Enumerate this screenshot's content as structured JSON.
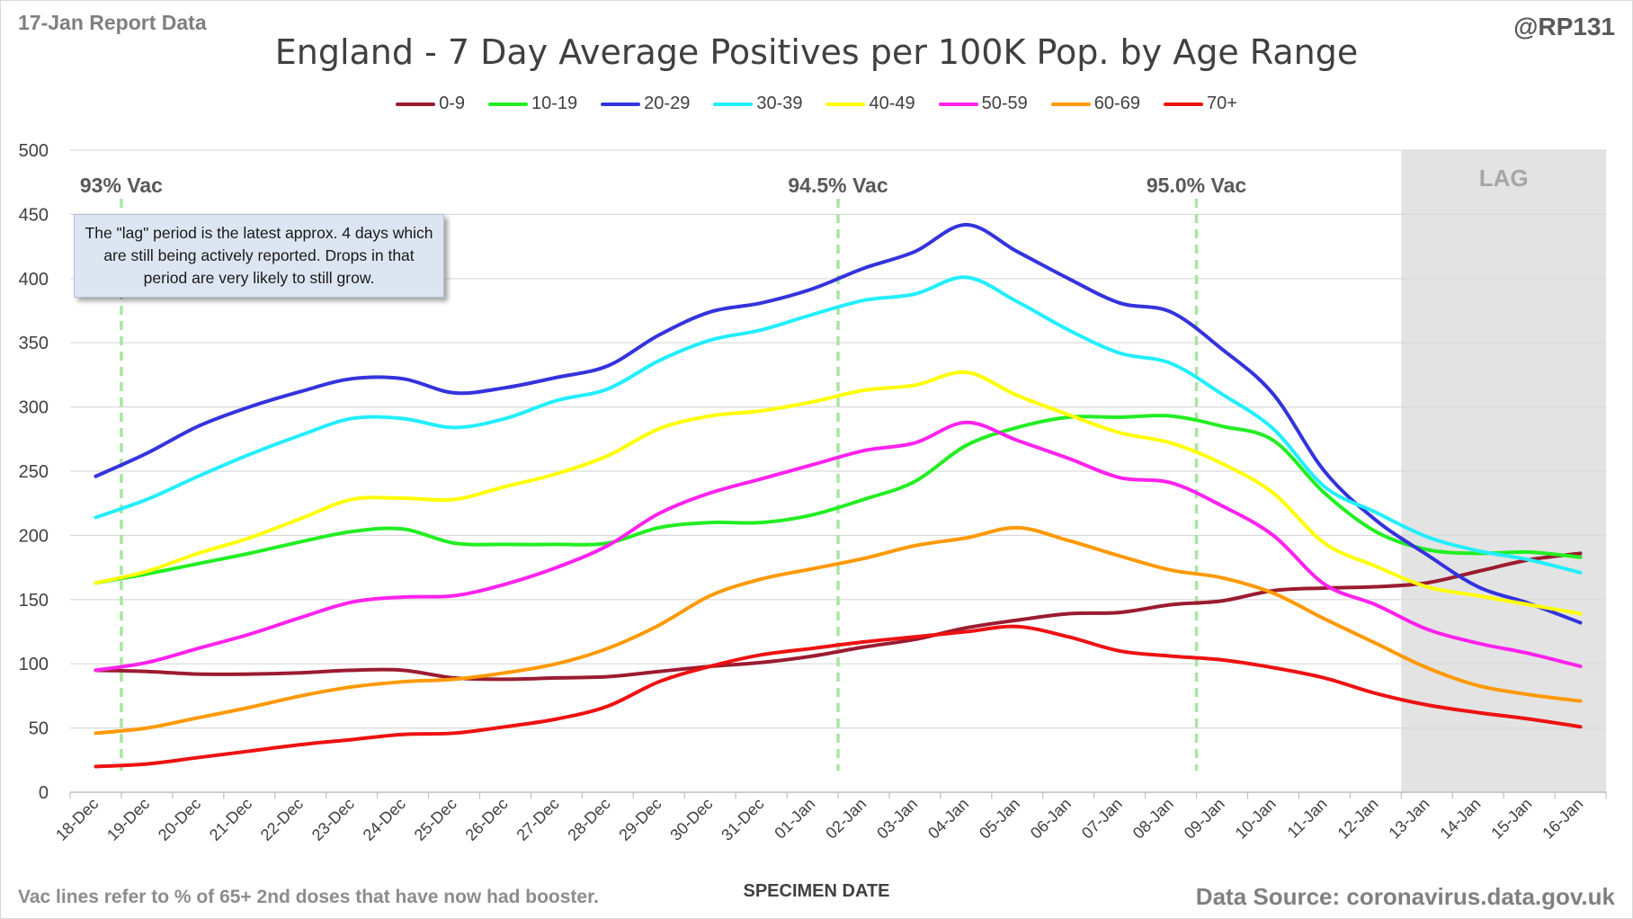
{
  "header": {
    "report_label": "17-Jan Report Data",
    "handle": "@RP131"
  },
  "footer": {
    "footnote": "Vac lines refer to % of 65+ 2nd doses that have now had booster.",
    "source": "Data Source: coronavirus.data.gov.uk"
  },
  "annotation": {
    "lag_note": "The \"lag\" period is the latest approx. 4 days which are still being actively reported.  Drops in that period are very likely to still grow."
  },
  "chart_data": {
    "type": "line",
    "title": "England - 7 Day Average Positives per 100K Pop. by Age Range",
    "xlabel": "SPECIMEN DATE",
    "ylabel": "",
    "ylim": [
      0,
      500
    ],
    "yticks": [
      0,
      50,
      100,
      150,
      200,
      250,
      300,
      350,
      400,
      450,
      500
    ],
    "grid": "horizontal",
    "legend_position": "top",
    "categories": [
      "18-Dec",
      "19-Dec",
      "20-Dec",
      "21-Dec",
      "22-Dec",
      "23-Dec",
      "24-Dec",
      "25-Dec",
      "26-Dec",
      "27-Dec",
      "28-Dec",
      "29-Dec",
      "30-Dec",
      "31-Dec",
      "01-Jan",
      "02-Jan",
      "03-Jan",
      "04-Jan",
      "05-Jan",
      "06-Jan",
      "07-Jan",
      "08-Jan",
      "09-Jan",
      "10-Jan",
      "11-Jan",
      "12-Jan",
      "13-Jan",
      "14-Jan",
      "15-Jan",
      "16-Jan"
    ],
    "series": [
      {
        "name": "0-9",
        "color": "#9b1b30",
        "values": [
          95,
          94,
          92,
          92,
          93,
          95,
          95,
          89,
          88,
          89,
          90,
          94,
          98,
          101,
          106,
          113,
          119,
          128,
          134,
          139,
          140,
          146,
          149,
          157,
          159,
          160,
          163,
          172,
          181,
          186
        ]
      },
      {
        "name": "10-19",
        "color": "#22ee22",
        "values": [
          163,
          170,
          178,
          186,
          195,
          203,
          205,
          194,
          193,
          193,
          194,
          206,
          210,
          210,
          216,
          228,
          242,
          270,
          284,
          292,
          292,
          293,
          285,
          274,
          233,
          203,
          189,
          186,
          187,
          183
        ]
      },
      {
        "name": "20-29",
        "color": "#3333dd",
        "values": [
          246,
          264,
          285,
          300,
          312,
          322,
          322,
          311,
          315,
          323,
          332,
          356,
          374,
          381,
          392,
          408,
          421,
          442,
          421,
          400,
          381,
          374,
          345,
          310,
          250,
          212,
          185,
          160,
          147,
          132
        ]
      },
      {
        "name": "30-39",
        "color": "#22eeff",
        "values": [
          214,
          228,
          246,
          263,
          278,
          291,
          291,
          284,
          291,
          305,
          314,
          336,
          352,
          360,
          372,
          383,
          388,
          401,
          382,
          360,
          342,
          334,
          310,
          283,
          238,
          218,
          199,
          188,
          181,
          171
        ]
      },
      {
        "name": "40-49",
        "color": "#ffff00",
        "values": [
          163,
          172,
          186,
          198,
          213,
          228,
          229,
          228,
          238,
          248,
          262,
          283,
          293,
          297,
          304,
          313,
          317,
          327,
          309,
          294,
          280,
          272,
          256,
          233,
          194,
          176,
          160,
          153,
          146,
          139
        ]
      },
      {
        "name": "50-59",
        "color": "#ff22ee",
        "values": [
          95,
          101,
          112,
          123,
          136,
          148,
          152,
          153,
          162,
          175,
          192,
          217,
          233,
          244,
          255,
          266,
          272,
          288,
          274,
          260,
          245,
          241,
          223,
          200,
          162,
          146,
          127,
          116,
          108,
          98
        ]
      },
      {
        "name": "60-69",
        "color": "#ff9900",
        "values": [
          46,
          50,
          58,
          66,
          75,
          82,
          86,
          88,
          93,
          100,
          112,
          130,
          153,
          166,
          174,
          182,
          192,
          198,
          206,
          196,
          184,
          173,
          167,
          155,
          135,
          116,
          97,
          83,
          76,
          71
        ]
      },
      {
        "name": "70+",
        "color": "#ee1111",
        "values": [
          20,
          22,
          27,
          32,
          37,
          41,
          45,
          46,
          51,
          57,
          67,
          86,
          98,
          107,
          112,
          117,
          121,
          125,
          129,
          121,
          110,
          106,
          103,
          97,
          89,
          77,
          68,
          62,
          57,
          51
        ]
      }
    ],
    "vac_lines": [
      {
        "label": "93% Vac",
        "x": 0.5
      },
      {
        "label": "94.5% Vac",
        "x": 14.5
      },
      {
        "label": "95.0% Vac",
        "x": 21.5
      }
    ],
    "lag_region": {
      "label": "LAG",
      "from": 25.5,
      "to": 29.5
    }
  }
}
